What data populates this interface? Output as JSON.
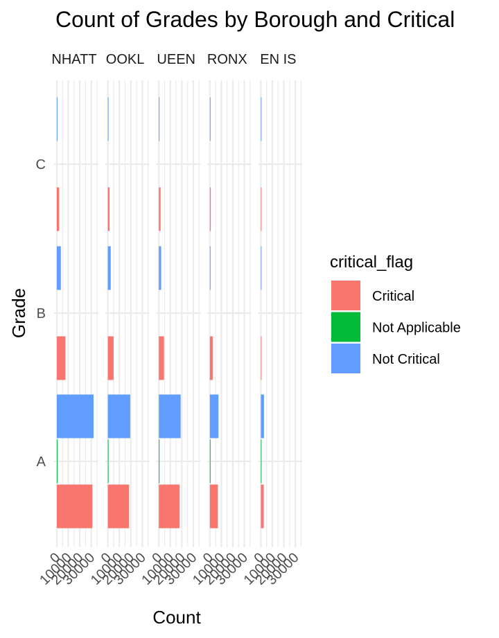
{
  "chart_data": {
    "type": "bar",
    "title": "Count of Grades by Borough and Critical",
    "xlabel": "Count",
    "ylabel": "Grade",
    "grades": [
      "A",
      "B",
      "C"
    ],
    "panels": [
      "MANHATTAN",
      "BROOKLYN",
      "QUEENS",
      "BRONX",
      "STATEN ISLAND"
    ],
    "panel_labels_visible": [
      "NHATT",
      "OOKL",
      "UEEN",
      "RONX",
      "EN IS"
    ],
    "xlim": [
      0,
      35000
    ],
    "x_ticks": [
      0,
      10000,
      20000,
      30000
    ],
    "grid": true,
    "legend": {
      "title": "critical_flag",
      "position": "right",
      "entries": [
        "Critical",
        "Not Applicable",
        "Not Critical"
      ]
    },
    "colors": {
      "Critical": "#F8766D",
      "Not Applicable": "#00BA38",
      "Not Critical": "#619CFF"
    },
    "series": [
      {
        "name": "Critical",
        "values": {
          "MANHATTAN": [
            31000,
            7500,
            2000
          ],
          "BROOKLYN": [
            18500,
            5000,
            1500
          ],
          "QUEENS": [
            18000,
            4500,
            1500
          ],
          "BRONX": [
            7000,
            2500,
            800
          ],
          "STATEN ISLAND": [
            2500,
            500,
            200
          ]
        }
      },
      {
        "name": "Not Applicable",
        "values": {
          "MANHATTAN": [
            300,
            0,
            0
          ],
          "BROOKLYN": [
            250,
            0,
            0
          ],
          "QUEENS": [
            200,
            0,
            0
          ],
          "BRONX": [
            100,
            0,
            0
          ],
          "STATEN ISLAND": [
            50,
            0,
            0
          ]
        }
      },
      {
        "name": "Not Critical",
        "values": {
          "MANHATTAN": [
            32000,
            3500,
            600
          ],
          "BROOKLYN": [
            19500,
            2500,
            500
          ],
          "QUEENS": [
            19000,
            2000,
            400
          ],
          "BRONX": [
            7500,
            500,
            150
          ],
          "STATEN ISLAND": [
            2700,
            200,
            50
          ]
        }
      }
    ]
  }
}
